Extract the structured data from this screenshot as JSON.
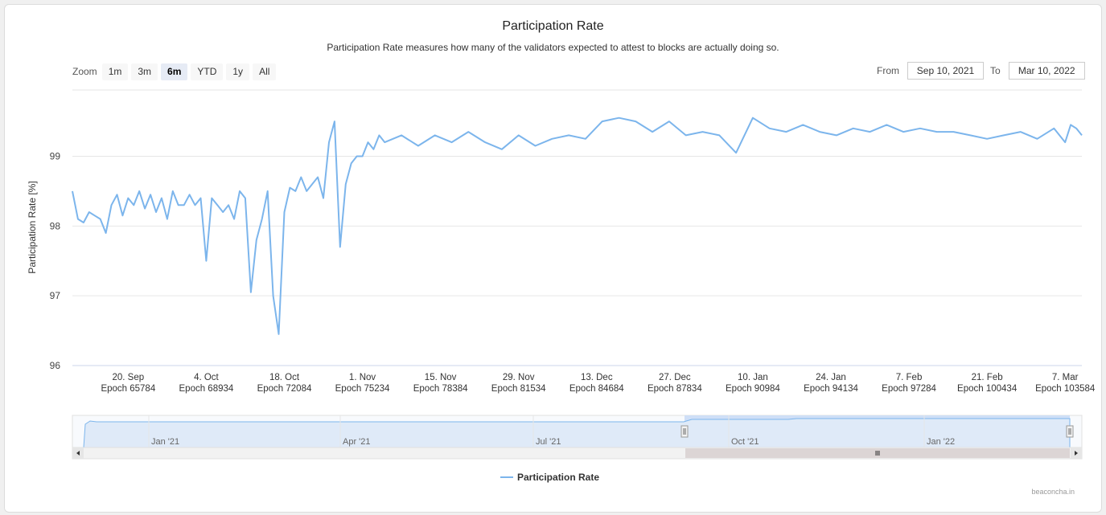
{
  "title": "Participation Rate",
  "subtitle": "Participation Rate measures how many of the validators expected to attest to blocks are actually doing so.",
  "zoom": {
    "label": "Zoom",
    "buttons": [
      "1m",
      "3m",
      "6m",
      "YTD",
      "1y",
      "All"
    ],
    "active": "6m"
  },
  "range": {
    "from_label": "From",
    "from_value": "Sep 10, 2021",
    "to_label": "To",
    "to_value": "Mar 10, 2022"
  },
  "legend": {
    "label": "Participation Rate"
  },
  "credit": "beaconcha.in",
  "colors": {
    "series": "#7cb5ec",
    "navigator_fill": "#cfe0f7",
    "selection": "#cadcf6"
  },
  "chart_data": {
    "type": "line",
    "ylabel": "Participation Rate [%]",
    "ylim": [
      96,
      99.95
    ],
    "yticks": [
      96,
      97,
      98,
      99
    ],
    "xlim": [
      "2021-09-10",
      "2022-03-10"
    ],
    "xticks": [
      {
        "date": "2021-09-20",
        "label": "20. Sep",
        "epoch": "Epoch 65784"
      },
      {
        "date": "2021-10-04",
        "label": "4. Oct",
        "epoch": "Epoch 68934"
      },
      {
        "date": "2021-10-18",
        "label": "18. Oct",
        "epoch": "Epoch 72084"
      },
      {
        "date": "2021-11-01",
        "label": "1. Nov",
        "epoch": "Epoch 75234"
      },
      {
        "date": "2021-11-15",
        "label": "15. Nov",
        "epoch": "Epoch 78384"
      },
      {
        "date": "2021-11-29",
        "label": "29. Nov",
        "epoch": "Epoch 81534"
      },
      {
        "date": "2021-12-13",
        "label": "13. Dec",
        "epoch": "Epoch 84684"
      },
      {
        "date": "2021-12-27",
        "label": "27. Dec",
        "epoch": "Epoch 87834"
      },
      {
        "date": "2022-01-10",
        "label": "10. Jan",
        "epoch": "Epoch 90984"
      },
      {
        "date": "2022-01-24",
        "label": "24. Jan",
        "epoch": "Epoch 94134"
      },
      {
        "date": "2022-02-07",
        "label": "7. Feb",
        "epoch": "Epoch 97284"
      },
      {
        "date": "2022-02-21",
        "label": "21. Feb",
        "epoch": "Epoch 100434"
      },
      {
        "date": "2022-03-07",
        "label": "7. Mar",
        "epoch": "Epoch 103584"
      }
    ],
    "series": [
      {
        "name": "Participation Rate",
        "x": [
          "2021-09-10",
          "2021-09-11",
          "2021-09-12",
          "2021-09-13",
          "2021-09-14",
          "2021-09-15",
          "2021-09-16",
          "2021-09-17",
          "2021-09-18",
          "2021-09-19",
          "2021-09-20",
          "2021-09-21",
          "2021-09-22",
          "2021-09-23",
          "2021-09-24",
          "2021-09-25",
          "2021-09-26",
          "2021-09-27",
          "2021-09-28",
          "2021-09-29",
          "2021-09-30",
          "2021-10-01",
          "2021-10-02",
          "2021-10-03",
          "2021-10-04",
          "2021-10-05",
          "2021-10-06",
          "2021-10-07",
          "2021-10-08",
          "2021-10-09",
          "2021-10-10",
          "2021-10-11",
          "2021-10-12",
          "2021-10-13",
          "2021-10-14",
          "2021-10-15",
          "2021-10-16",
          "2021-10-17",
          "2021-10-18",
          "2021-10-19",
          "2021-10-20",
          "2021-10-21",
          "2021-10-22",
          "2021-10-23",
          "2021-10-24",
          "2021-10-25",
          "2021-10-26",
          "2021-10-27",
          "2021-10-28",
          "2021-10-29",
          "2021-10-30",
          "2021-10-31",
          "2021-11-01",
          "2021-11-02",
          "2021-11-03",
          "2021-11-04",
          "2021-11-05",
          "2021-11-08",
          "2021-11-11",
          "2021-11-14",
          "2021-11-17",
          "2021-11-20",
          "2021-11-23",
          "2021-11-26",
          "2021-11-29",
          "2021-12-02",
          "2021-12-05",
          "2021-12-08",
          "2021-12-11",
          "2021-12-14",
          "2021-12-17",
          "2021-12-20",
          "2021-12-23",
          "2021-12-26",
          "2021-12-29",
          "2022-01-01",
          "2022-01-04",
          "2022-01-07",
          "2022-01-10",
          "2022-01-13",
          "2022-01-16",
          "2022-01-19",
          "2022-01-22",
          "2022-01-25",
          "2022-01-28",
          "2022-01-31",
          "2022-02-03",
          "2022-02-06",
          "2022-02-09",
          "2022-02-12",
          "2022-02-15",
          "2022-02-18",
          "2022-02-21",
          "2022-02-24",
          "2022-02-27",
          "2022-03-02",
          "2022-03-05",
          "2022-03-07",
          "2022-03-08",
          "2022-03-09",
          "2022-03-10"
        ],
        "values": [
          98.5,
          98.1,
          98.05,
          98.2,
          98.15,
          98.1,
          97.9,
          98.3,
          98.45,
          98.15,
          98.4,
          98.3,
          98.5,
          98.25,
          98.45,
          98.2,
          98.4,
          98.1,
          98.5,
          98.3,
          98.3,
          98.45,
          98.3,
          98.4,
          97.5,
          98.4,
          98.3,
          98.2,
          98.3,
          98.1,
          98.5,
          98.4,
          97.05,
          97.8,
          98.1,
          98.5,
          97.0,
          96.45,
          98.2,
          98.55,
          98.5,
          98.7,
          98.5,
          98.6,
          98.7,
          98.4,
          99.2,
          99.5,
          97.7,
          98.6,
          98.9,
          99.0,
          99.0,
          99.2,
          99.1,
          99.3,
          99.2,
          99.3,
          99.15,
          99.3,
          99.2,
          99.35,
          99.2,
          99.1,
          99.3,
          99.15,
          99.25,
          99.3,
          99.25,
          99.5,
          99.55,
          99.5,
          99.35,
          99.5,
          99.3,
          99.35,
          99.3,
          99.05,
          99.55,
          99.4,
          99.35,
          99.45,
          99.35,
          99.3,
          99.4,
          99.35,
          99.45,
          99.35,
          99.4,
          99.35,
          99.35,
          99.3,
          99.25,
          99.3,
          99.35,
          99.25,
          99.4,
          99.2,
          99.45,
          99.4,
          99.3
        ]
      }
    ],
    "navigator": {
      "ticks": [
        "Jan '21",
        "Apr '21",
        "Jul '21",
        "Oct '21",
        "Jan '22"
      ]
    }
  }
}
